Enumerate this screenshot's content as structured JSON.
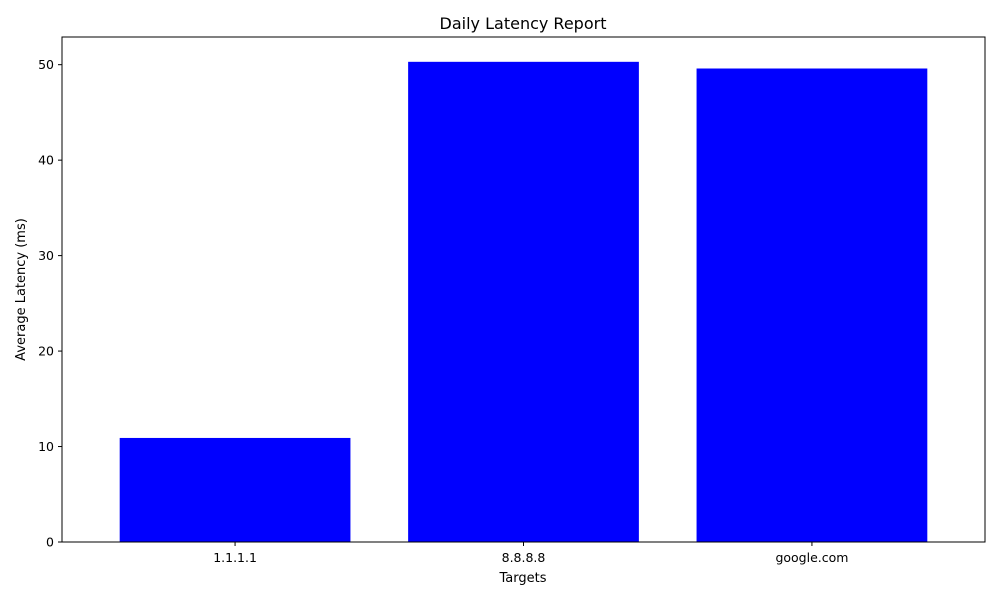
{
  "chart_data": {
    "type": "bar",
    "title": "Daily Latency Report",
    "xlabel": "Targets",
    "ylabel": "Average Latency (ms)",
    "categories": [
      "1.1.1.1",
      "8.8.8.8",
      "google.com"
    ],
    "values": [
      10.9,
      50.3,
      49.6
    ],
    "ylim": [
      0,
      52.9
    ],
    "yticks": [
      0,
      10,
      20,
      30,
      40,
      50
    ],
    "bar_color": "#0000ff",
    "grid": false,
    "legend": "none"
  }
}
